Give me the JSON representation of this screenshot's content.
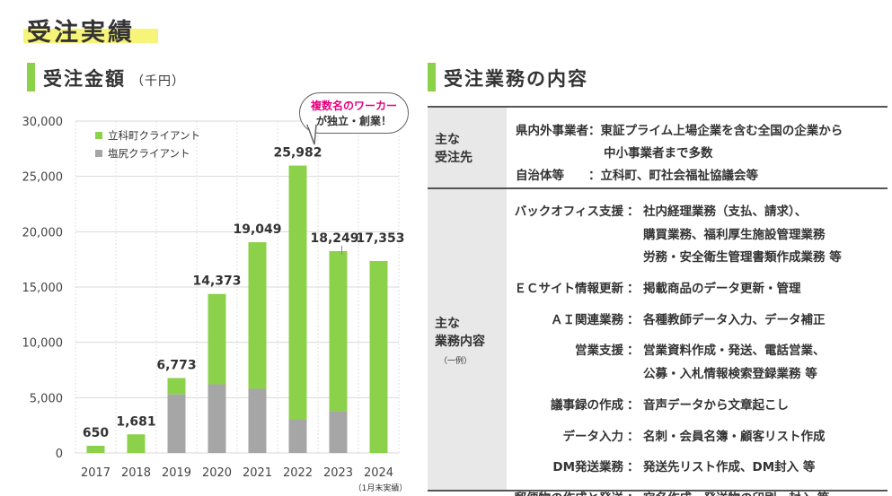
{
  "page": {
    "title": "受注実績"
  },
  "left_section": {
    "title": "受注金額",
    "unit": "（千円）"
  },
  "right_section": {
    "title": "受注業務の内容"
  },
  "callout": {
    "line1": "複数名のワーカー",
    "line2": "が独立・創業！"
  },
  "chart_note": "（1月末実績）",
  "chart_data": {
    "type": "bar",
    "stacked": true,
    "categories": [
      "2017",
      "2018",
      "2019",
      "2020",
      "2021",
      "2022",
      "2023",
      "2024"
    ],
    "series": [
      {
        "name": "立科町クライアント",
        "color": "#8cd14a",
        "values": [
          650,
          1681,
          1473,
          8173,
          13249,
          22982,
          14449,
          17353
        ]
      },
      {
        "name": "塩尻クライアント",
        "color": "#a6a6a6",
        "values": [
          0,
          0,
          5300,
          6200,
          5800,
          3000,
          3800,
          0
        ]
      }
    ],
    "totals": [
      650,
      1681,
      6773,
      14373,
      19049,
      25982,
      18249,
      17353
    ],
    "total_labels": [
      "650",
      "1,681",
      "6,773",
      "14,373",
      "19,049",
      "25,982",
      "18,249",
      "17,353"
    ],
    "ylim": [
      0,
      30000
    ],
    "yticks": [
      "0",
      "5,000",
      "10,000",
      "15,000",
      "20,000",
      "25,000",
      "30,000"
    ],
    "legend_position": "top-left",
    "grid": true
  },
  "table": {
    "row1": {
      "header": [
        "主な",
        "受注先"
      ],
      "lines": [
        "県内外事業者：東証プライム上場企業を含む全国の企業から",
        "中小事業者まで多数",
        "自治体等　　：立科町、町社会福祉協議会等"
      ]
    },
    "row2": {
      "header": [
        "主な",
        "業務内容"
      ],
      "header_sub": "（一例）",
      "items": [
        {
          "category": "バックオフィス支援",
          "lines": [
            "社内経理業務（支払、請求）、",
            "購買業務、福利厚生施設管理業務",
            "労務・安全衛生管理書類作成業務 等"
          ]
        },
        {
          "category": "ＥＣサイト情報更新",
          "lines": [
            "掲載商品のデータ更新・管理"
          ]
        },
        {
          "category": "ＡＩ関連業務",
          "lines": [
            "各種教師データ入力、データ補正"
          ]
        },
        {
          "category": "営業支援",
          "lines": [
            "営業資料作成・発送、電話営業、",
            "公募・入札情報検索登録業務 等"
          ]
        },
        {
          "category": "議事録の作成",
          "lines": [
            "音声データから文章起こし"
          ]
        },
        {
          "category": "データ入力",
          "lines": [
            "名刺・会員名簿・顧客リスト作成"
          ]
        },
        {
          "category": "DM発送業務",
          "lines": [
            "発送先リスト作成、DM封入 等"
          ]
        },
        {
          "category": "郵便物の作成と発送",
          "lines": [
            "宛名作成、発送物の印刷、封入 等"
          ]
        }
      ]
    }
  }
}
